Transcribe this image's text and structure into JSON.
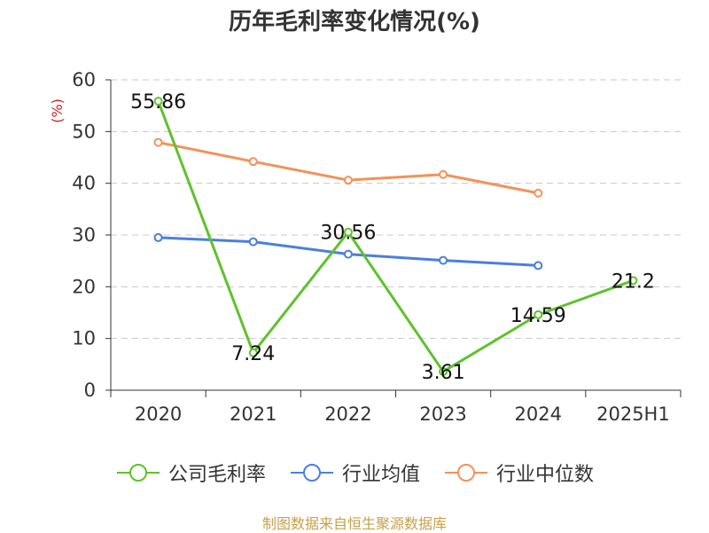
{
  "source": "制图数据来自恒生聚源数据库",
  "chart_data": {
    "type": "line",
    "title": "历年毛利率变化情况(%)",
    "ylabel": "(%)",
    "xlabel": "",
    "categories": [
      "2020",
      "2021",
      "2022",
      "2023",
      "2024",
      "2025H1"
    ],
    "ylim": [
      0,
      60
    ],
    "yticks": [
      0,
      10,
      20,
      30,
      40,
      50,
      60
    ],
    "grid": true,
    "legend_position": "bottom",
    "series": [
      {
        "name": "公司毛利率",
        "color": "#5ec22d",
        "values": [
          55.86,
          7.24,
          30.56,
          3.61,
          14.59,
          21.2
        ],
        "labels": [
          "55.86",
          "7.24",
          "30.56",
          "3.61",
          "14.59",
          "21.2"
        ]
      },
      {
        "name": "行业均值",
        "color": "#4a7fde",
        "values": [
          29.5,
          28.7,
          26.3,
          25.1,
          24.1,
          null
        ]
      },
      {
        "name": "行业中位数",
        "color": "#f59157",
        "values": [
          47.9,
          44.2,
          40.6,
          41.7,
          38.1,
          null
        ]
      }
    ]
  }
}
